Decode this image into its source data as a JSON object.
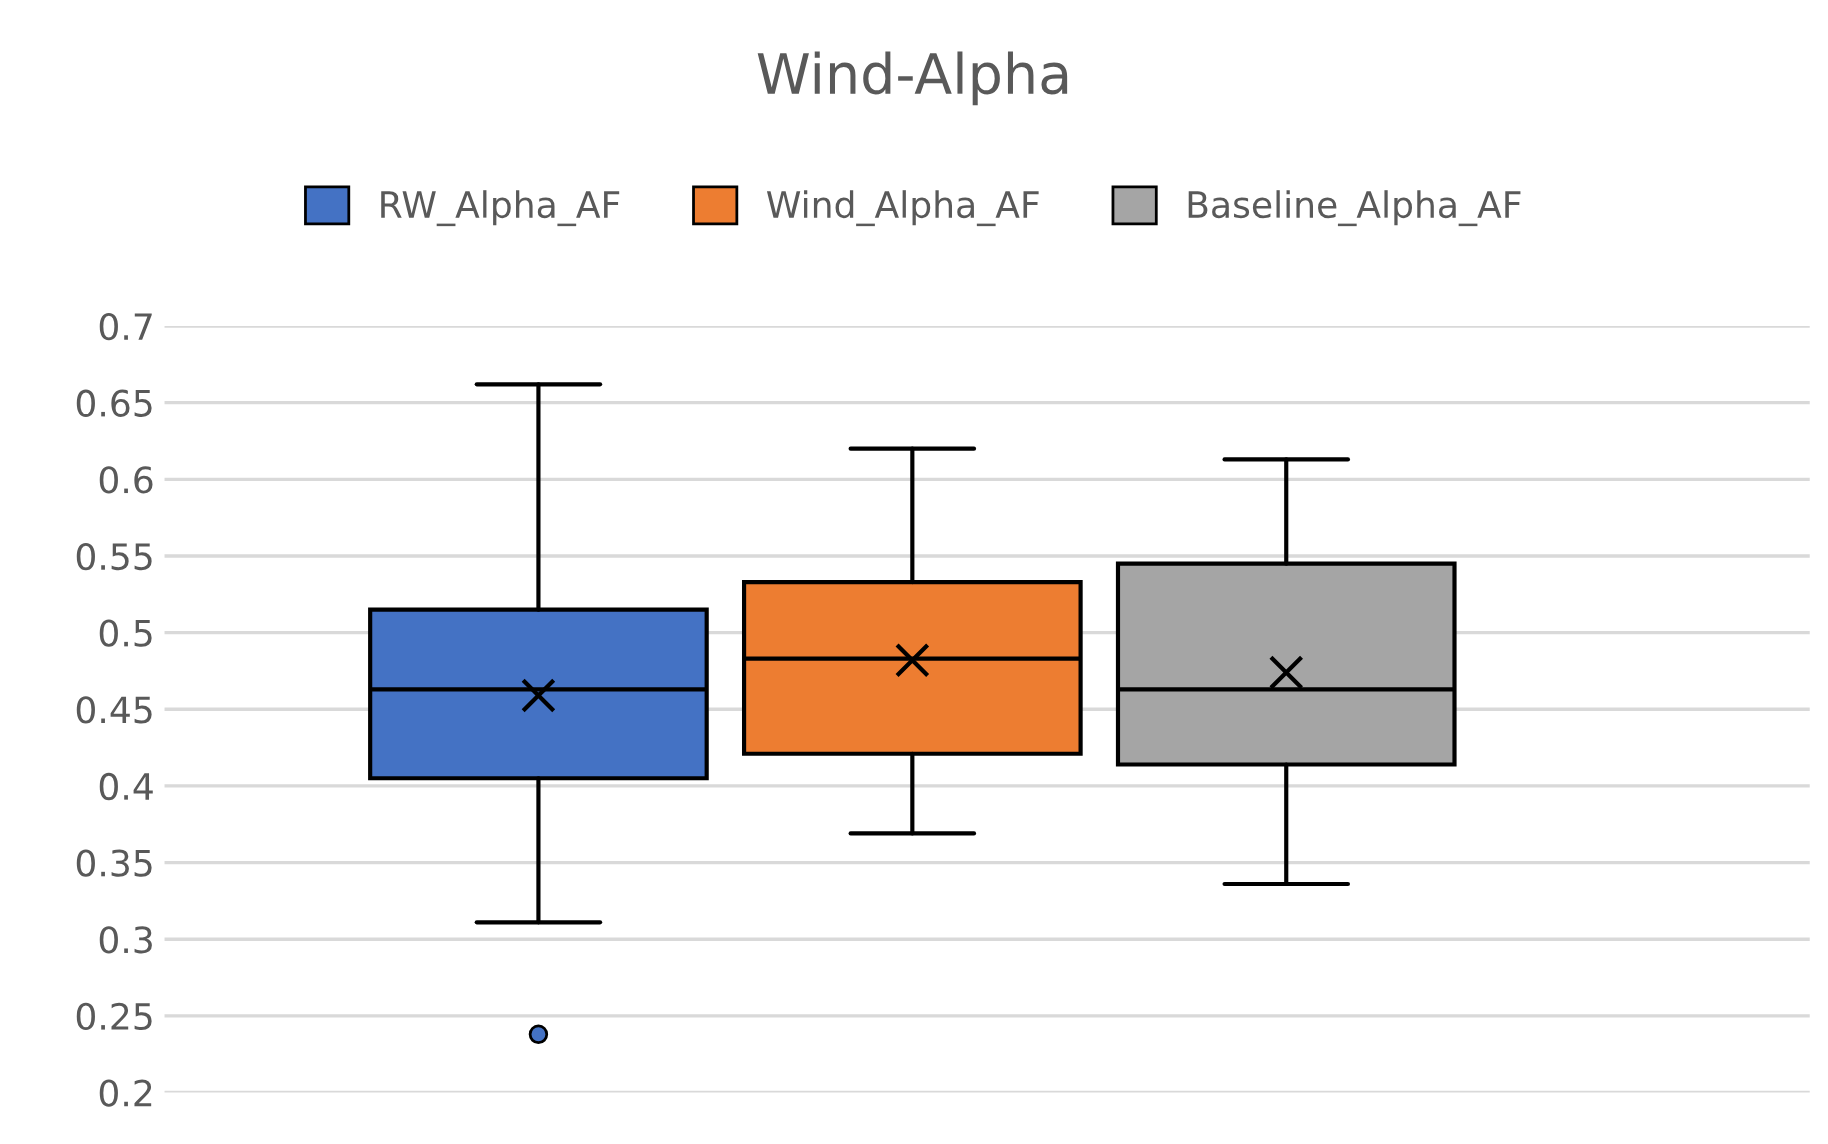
{
  "chart_data": {
    "type": "box",
    "title": "Wind-Alpha",
    "categories": [
      null
    ],
    "series": [
      {
        "name": "RW_Alpha_AF",
        "color": "#4472c4",
        "boxes": [
          {
            "low": 0.311,
            "q1": 0.405,
            "median": 0.463,
            "q3": 0.515,
            "high": 0.662,
            "mean": 0.459,
            "outliers": [
              0.238
            ]
          }
        ]
      },
      {
        "name": "Wind_Alpha_AF",
        "color": "#ed7d31",
        "boxes": [
          {
            "low": 0.369,
            "q1": 0.421,
            "median": 0.483,
            "q3": 0.533,
            "high": 0.62,
            "mean": 0.482
          }
        ]
      },
      {
        "name": "Baseline_Alpha_AF",
        "color": "#a5a5a5",
        "boxes": [
          {
            "low": 0.336,
            "q1": 0.414,
            "median": 0.463,
            "q3": 0.545,
            "high": 0.613,
            "mean": 0.474
          }
        ]
      }
    ],
    "ylim": [
      0.2,
      0.7
    ],
    "yticks": [
      0.2,
      0.25,
      0.3,
      0.35,
      0.4,
      0.45,
      0.5,
      0.55,
      0.6,
      0.65,
      0.7
    ],
    "grid": "y",
    "legend": "top",
    "marker": "cross"
  }
}
